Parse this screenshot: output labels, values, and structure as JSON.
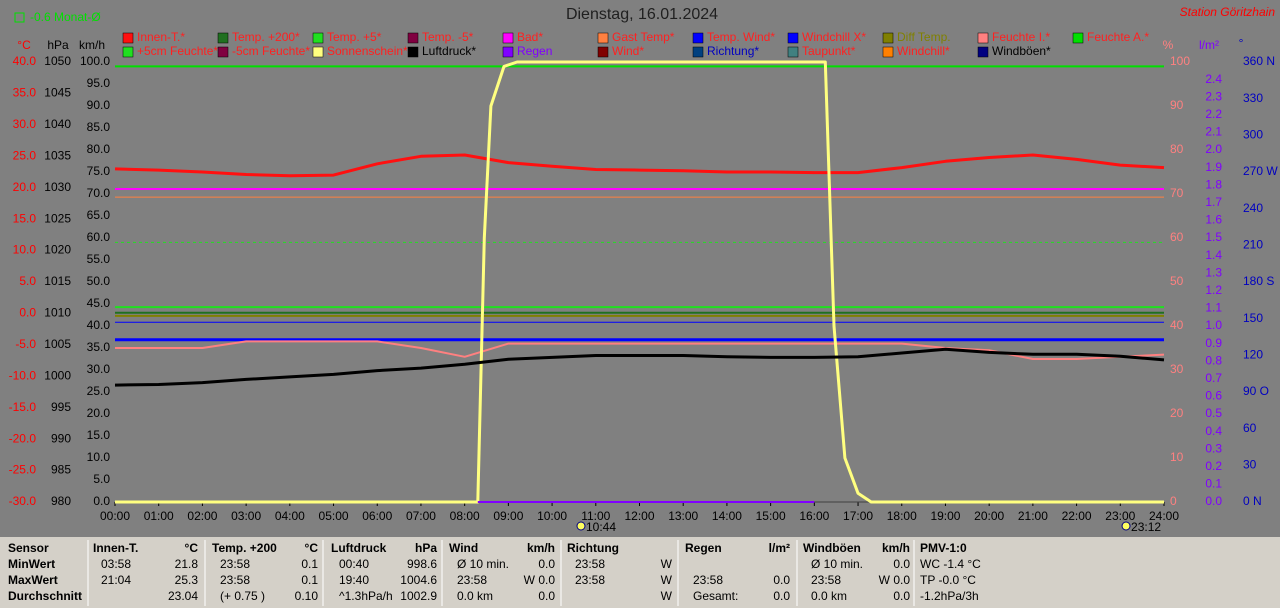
{
  "chart_data": {
    "type": "line",
    "title": "Dienstag, 16.01.2024",
    "station": "Station Göritzhain",
    "month_average": "-0.6 Monat-Ø",
    "legend_text_color": "#ff2020",
    "xlim": [
      0,
      24
    ],
    "xticks": [
      {
        "value": 0,
        "label": "00:00"
      },
      {
        "value": 1,
        "label": "01:00"
      },
      {
        "value": 2,
        "label": "02:00"
      },
      {
        "value": 3,
        "label": "03:00"
      },
      {
        "value": 4,
        "label": "04:00"
      },
      {
        "value": 5,
        "label": "05:00"
      },
      {
        "value": 6,
        "label": "06:00"
      },
      {
        "value": 7,
        "label": "07:00"
      },
      {
        "value": 8,
        "label": "08:00"
      },
      {
        "value": 9,
        "label": "09:00"
      },
      {
        "value": 10,
        "label": "10:00"
      },
      {
        "value": 11,
        "label": "11:00"
      },
      {
        "value": 12,
        "label": "12:00"
      },
      {
        "value": 13,
        "label": "13:00"
      },
      {
        "value": 14,
        "label": "14:00"
      },
      {
        "value": 15,
        "label": "15:00"
      },
      {
        "value": 16,
        "label": "16:00"
      },
      {
        "value": 17,
        "label": "17:00"
      },
      {
        "value": 18,
        "label": "18:00"
      },
      {
        "value": 19,
        "label": "19:00"
      },
      {
        "value": 20,
        "label": "20:00"
      },
      {
        "value": 21,
        "label": "21:00"
      },
      {
        "value": 22,
        "label": "22:00"
      },
      {
        "value": 23,
        "label": "23:00"
      },
      {
        "value": 24,
        "label": "24:00"
      }
    ],
    "ylabel": "°C",
    "ylim": [
      -30,
      40
    ],
    "yticks": [
      {
        "value": 40,
        "label": "40.0"
      },
      {
        "value": 35,
        "label": "35.0"
      },
      {
        "value": 30,
        "label": "30.0"
      },
      {
        "value": 25,
        "label": "25.0"
      },
      {
        "value": 20,
        "label": "20.0"
      },
      {
        "value": 15,
        "label": "15.0"
      },
      {
        "value": 10,
        "label": "10.0"
      },
      {
        "value": 5,
        "label": "5.0"
      },
      {
        "value": 0,
        "label": "0.0"
      },
      {
        "value": -5,
        "label": "-5.0"
      },
      {
        "value": -10,
        "label": "-10.0"
      },
      {
        "value": -15,
        "label": "-15.0"
      },
      {
        "value": -20,
        "label": "-20.0"
      },
      {
        "value": -25,
        "label": "-25.0"
      },
      {
        "value": -30,
        "label": "-30.0"
      }
    ],
    "y2label": "hPa",
    "y2lim": [
      980,
      1050
    ],
    "y2ticks": [
      1050,
      1045,
      1040,
      1035,
      1030,
      1025,
      1020,
      1015,
      1010,
      1005,
      1000,
      995,
      990,
      985,
      980
    ],
    "y3label": "km/h",
    "y3lim": [
      0,
      100
    ],
    "y3ticks": [
      {
        "value": 100,
        "label": "100.0"
      },
      {
        "value": 95,
        "label": "95.0"
      },
      {
        "value": 90,
        "label": "90.0"
      },
      {
        "value": 85,
        "label": "85.0"
      },
      {
        "value": 80,
        "label": "80.0"
      },
      {
        "value": 75,
        "label": "75.0"
      },
      {
        "value": 70,
        "label": "70.0"
      },
      {
        "value": 65,
        "label": "65.0"
      },
      {
        "value": 60,
        "label": "60.0"
      },
      {
        "value": 55,
        "label": "55.0"
      },
      {
        "value": 50,
        "label": "50.0"
      },
      {
        "value": 45,
        "label": "45.0"
      },
      {
        "value": 40,
        "label": "40.0"
      },
      {
        "value": 35,
        "label": "35.0"
      },
      {
        "value": 30,
        "label": "30.0"
      },
      {
        "value": 25,
        "label": "25.0"
      },
      {
        "value": 20,
        "label": "20.0"
      },
      {
        "value": 15,
        "label": "15.0"
      },
      {
        "value": 10,
        "label": "10.0"
      },
      {
        "value": 5,
        "label": "5.0"
      },
      {
        "value": 0,
        "label": "0.0"
      }
    ],
    "y4label": "%",
    "y4lim": [
      0,
      100
    ],
    "y4ticks": [
      100,
      90,
      80,
      70,
      60,
      50,
      40,
      30,
      20,
      10,
      0
    ],
    "y5label": "l/m²",
    "y5lim": [
      0,
      2.5
    ],
    "y5ticks": [
      2.4,
      2.3,
      2.2,
      2.1,
      {
        "value": 2,
        "label": "2.0"
      },
      1.9,
      1.8,
      1.7,
      1.6,
      1.5,
      1.4,
      1.3,
      1.2,
      1.1,
      {
        "value": 1,
        "label": "1.0"
      },
      0.9,
      0.8,
      0.7,
      0.6,
      0.5,
      0.4,
      0.3,
      0.2,
      0.1,
      {
        "value": 0,
        "label": "0.0"
      }
    ],
    "y6label": "°",
    "y6lim": [
      0,
      360
    ],
    "y6ticks": [
      {
        "value": 360,
        "label": "360 N"
      },
      330,
      300,
      {
        "value": 270,
        "label": "270 W"
      },
      240,
      210,
      {
        "value": 180,
        "label": "180 S"
      },
      150,
      120,
      {
        "value": 90,
        "label": "90 O"
      },
      60,
      30,
      {
        "value": 0,
        "label": "0 N"
      }
    ],
    "series": [
      {
        "name": "Innen-T.*",
        "color": "#ff1010",
        "axis": "y",
        "width": 3,
        "x": [
          0,
          1,
          2,
          3,
          4,
          5,
          6,
          7,
          8,
          9,
          10,
          11,
          12,
          13,
          14,
          15,
          16,
          17,
          18,
          19,
          20,
          21,
          22,
          23,
          24
        ],
        "values": [
          23.0,
          22.8,
          22.5,
          22.1,
          21.9,
          22.0,
          23.8,
          25.0,
          25.2,
          24.0,
          23.4,
          22.9,
          22.8,
          22.7,
          22.5,
          22.5,
          22.4,
          22.4,
          23.2,
          24.2,
          24.8,
          25.2,
          24.5,
          23.6,
          23.2
        ]
      },
      {
        "name": "Temp. +200*",
        "color": "#207020",
        "axis": "y",
        "width": 2,
        "x": [
          0,
          24
        ],
        "values": [
          0.1,
          0.1
        ]
      },
      {
        "name": "Temp. +5*",
        "color": "#20e020",
        "axis": "y",
        "width": 2,
        "x": [
          0,
          24
        ],
        "values": [
          1.0,
          1.0
        ]
      },
      {
        "name": "Temp. -5*",
        "color": "#800040"
      },
      {
        "name": "Bad*",
        "color": "#ff00ff",
        "axis": "y",
        "width": 2,
        "x": [
          0,
          24
        ],
        "values": [
          19.8,
          19.8
        ]
      },
      {
        "name": "Gast Temp*",
        "color": "#ff8040",
        "axis": "y",
        "width": 1,
        "x": [
          0,
          24
        ],
        "values": [
          18.5,
          18.5
        ]
      },
      {
        "name": "Temp. Wind*",
        "color": "#0000ff",
        "axis": "y",
        "width": 3,
        "x": [
          0,
          24
        ],
        "values": [
          -4.2,
          -4.2
        ]
      },
      {
        "name": "Windchill X*",
        "color": "#0000ff",
        "axis": "y",
        "width": 1,
        "x": [
          0,
          24
        ],
        "values": [
          -1.4,
          -1.4
        ]
      },
      {
        "name": "Diff Temp.",
        "color": "#808000",
        "label_color": "#808000",
        "axis": "y",
        "width": 2,
        "x": [
          0,
          24
        ],
        "values": [
          -0.4,
          -0.4
        ]
      },
      {
        "name": "Feuchte I.*",
        "color": "#ff8080",
        "axis": "y4",
        "width": 2,
        "x": [
          0,
          1,
          2,
          3,
          4,
          5,
          6,
          7,
          8,
          9,
          10,
          11,
          12,
          13,
          14,
          15,
          16,
          17,
          18,
          19,
          20,
          21,
          22,
          23,
          24
        ],
        "values": [
          35,
          35,
          35,
          36.5,
          36.5,
          36.5,
          36.5,
          35,
          33,
          36,
          36,
          36,
          36,
          36,
          36,
          36,
          36,
          36,
          36,
          35,
          34.5,
          32.5,
          32.5,
          33,
          33.5
        ]
      },
      {
        "name": "Feuchte A.*",
        "color": "#00e000",
        "axis": "y4",
        "width": 2,
        "x": [
          0,
          24
        ],
        "values": [
          99,
          99
        ]
      },
      {
        "name": "+5cm Feuchte*",
        "color": "#20e020",
        "axis": "y4",
        "width": 1,
        "style": "dashed",
        "x": [
          0,
          24
        ],
        "values": [
          59,
          59
        ]
      },
      {
        "name": "-5cm Feuchte*",
        "color": "#800040"
      },
      {
        "name": "Sonnenschein*",
        "color": "#ffff80",
        "axis": "y4",
        "width": 3,
        "x": [
          0,
          8.3,
          8.45,
          8.6,
          8.9,
          9.2,
          16,
          16.25,
          16.45,
          16.7,
          17,
          17.3,
          24
        ],
        "values": [
          0,
          0,
          60,
          90,
          99,
          100,
          100,
          100,
          40,
          10,
          2,
          0,
          0
        ]
      },
      {
        "name": "Luftdruck*",
        "color": "#000000",
        "label_color": "#000000",
        "axis": "y2",
        "width": 3,
        "x": [
          0,
          1,
          2,
          3,
          4,
          5,
          6,
          7,
          8,
          9,
          10,
          11,
          12,
          13,
          14,
          15,
          16,
          17,
          18,
          19,
          20,
          21,
          22,
          23,
          24
        ],
        "values": [
          998.6,
          998.7,
          999.0,
          999.5,
          999.9,
          1000.3,
          1000.9,
          1001.3,
          1001.9,
          1002.7,
          1003.0,
          1003.3,
          1003.3,
          1003.3,
          1003.1,
          1003.0,
          1003.0,
          1003.1,
          1003.7,
          1004.3,
          1003.8,
          1003.5,
          1003.5,
          1003.2,
          1002.6
        ]
      },
      {
        "name": "Regen",
        "color": "#8000ff",
        "label_color": "#8000ff",
        "axis": "y5",
        "width": 2,
        "x": [
          8.3,
          16
        ],
        "values": [
          0,
          0
        ]
      },
      {
        "name": "Wind*",
        "color": "#800000"
      },
      {
        "name": "Richtung*",
        "color": "#004080",
        "label_color": "#0000c0"
      },
      {
        "name": "Taupunkt*",
        "color": "#408080"
      },
      {
        "name": "Windchill*",
        "color": "#ff8000"
      },
      {
        "name": "Windböen*",
        "color": "#000080",
        "label_color": "#000000"
      }
    ],
    "annotations": [
      {
        "label": "10:44",
        "x": 10.73
      },
      {
        "label": "23:12",
        "x": 23.2
      }
    ]
  },
  "table": {
    "row_labels_title": "Sensor",
    "row_labels": [
      "MinWert",
      "MaxWert",
      "Durchschnitt"
    ],
    "columns": [
      {
        "title": "Innen-T.",
        "unit": "°C",
        "rows": [
          [
            "03:58",
            "21.8"
          ],
          [
            "21:04",
            "25.3"
          ],
          [
            null,
            "23.04"
          ]
        ]
      },
      {
        "title": "Temp. +200",
        "unit": "°C",
        "rows": [
          [
            "23:58",
            "0.1"
          ],
          [
            "23:58",
            "0.1"
          ],
          [
            "(+ 0.75 )",
            "0.10"
          ]
        ]
      },
      {
        "title": "Luftdruck",
        "unit": "hPa",
        "rows": [
          [
            "00:40",
            "998.6"
          ],
          [
            "19:40",
            "1004.6"
          ],
          [
            "^1.3hPa/h",
            "1002.9"
          ]
        ]
      },
      {
        "title": "Wind",
        "unit": "km/h",
        "rows": [
          [
            "Ø 10 min.",
            "0.0"
          ],
          [
            "23:58",
            "W 0.0"
          ],
          [
            "0.0 km",
            "0.0"
          ]
        ]
      },
      {
        "title": "Richtung",
        "unit": null,
        "rows": [
          [
            "23:58",
            "W"
          ],
          [
            "23:58",
            "W"
          ],
          [
            null,
            "W"
          ]
        ]
      },
      {
        "title": "Regen",
        "unit": "l/m²",
        "rows": [
          [
            null,
            null
          ],
          [
            "23:58",
            "0.0"
          ],
          [
            "Gesamt:",
            "0.0"
          ]
        ]
      },
      {
        "title": "Windböen",
        "unit": "km/h",
        "rows": [
          [
            "Ø 10 min.",
            "0.0"
          ],
          [
            "23:58",
            "W 0.0"
          ],
          [
            "0.0 km",
            "0.0"
          ]
        ]
      },
      {
        "title": "PMV-1:0",
        "unit": null,
        "rows": [
          [
            "WC -1.4 °C",
            null
          ],
          [
            "TP -0.0 °C",
            null
          ],
          [
            "-1.2hPa/3h",
            null
          ]
        ]
      }
    ]
  }
}
